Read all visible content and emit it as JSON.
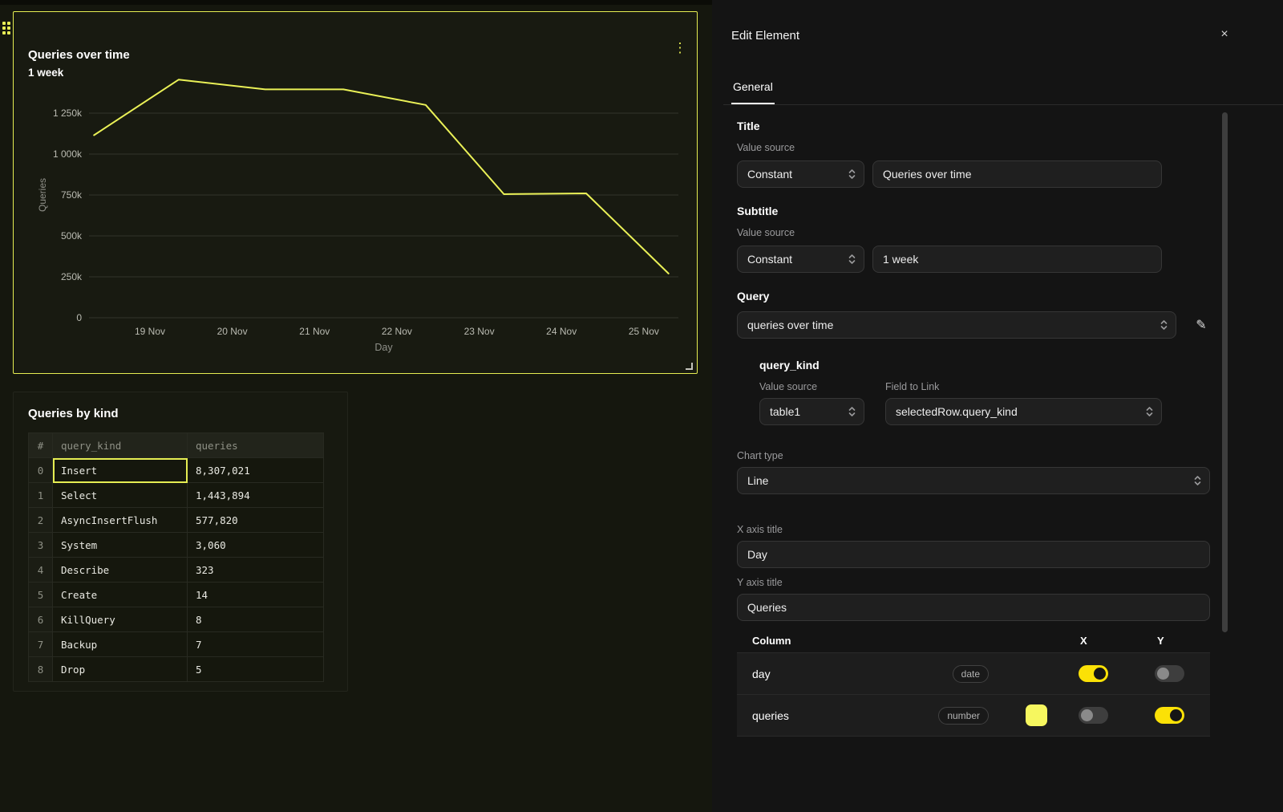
{
  "icons": {
    "kebab": "⋮",
    "close": "×",
    "pencil": "✎"
  },
  "colors": {
    "accent": "#e5ed52",
    "toggle_on": "#fbe106",
    "canvas_bg": "#15170e",
    "panel_bg": "#141414"
  },
  "canvas": {
    "chart_data": {
      "type": "line",
      "title": "Queries over time",
      "subtitle": "1 week",
      "xlabel": "Day",
      "ylabel": "Queries",
      "line_color": "#eaf157",
      "x_range": [
        18.26,
        25.42
      ],
      "y_range": [
        0,
        1500000
      ],
      "x_ticks": [
        {
          "value": 19,
          "label": "19 Nov"
        },
        {
          "value": 20,
          "label": "20 Nov"
        },
        {
          "value": 21,
          "label": "21 Nov"
        },
        {
          "value": 22,
          "label": "22 Nov"
        },
        {
          "value": 23,
          "label": "23 Nov"
        },
        {
          "value": 24,
          "label": "24 Nov"
        },
        {
          "value": 25,
          "label": "25 Nov"
        }
      ],
      "y_ticks": [
        {
          "value": 0,
          "label": "0"
        },
        {
          "value": 250000,
          "label": "250k"
        },
        {
          "value": 500000,
          "label": "500k"
        },
        {
          "value": 750000,
          "label": "750k"
        },
        {
          "value": 1000000,
          "label": "1 000k"
        },
        {
          "value": 1250000,
          "label": "1 250k"
        }
      ],
      "points": [
        [
          18.32,
          1115000
        ],
        [
          19.35,
          1455000
        ],
        [
          20.4,
          1395000
        ],
        [
          21.35,
          1395000
        ],
        [
          22.35,
          1300000
        ],
        [
          23.3,
          755000
        ],
        [
          24.3,
          760000
        ],
        [
          25.3,
          270000
        ]
      ]
    },
    "table_card": {
      "title": "Queries by kind",
      "columns": [
        "#",
        "query_kind",
        "queries"
      ],
      "rows": [
        {
          "index": 0,
          "query_kind": "Insert",
          "queries": "8,307,021",
          "selected": true
        },
        {
          "index": 1,
          "query_kind": "Select",
          "queries": "1,443,894",
          "selected": false
        },
        {
          "index": 2,
          "query_kind": "AsyncInsertFlush",
          "queries": "577,820",
          "selected": false
        },
        {
          "index": 3,
          "query_kind": "System",
          "queries": "3,060",
          "selected": false
        },
        {
          "index": 4,
          "query_kind": "Describe",
          "queries": "323",
          "selected": false
        },
        {
          "index": 5,
          "query_kind": "Create",
          "queries": "14",
          "selected": false
        },
        {
          "index": 6,
          "query_kind": "KillQuery",
          "queries": "8",
          "selected": false
        },
        {
          "index": 7,
          "query_kind": "Backup",
          "queries": "7",
          "selected": false
        },
        {
          "index": 8,
          "query_kind": "Drop",
          "queries": "5",
          "selected": false
        }
      ]
    }
  },
  "panel": {
    "title": "Edit Element",
    "tabs": [
      {
        "label": "General",
        "active": true
      }
    ],
    "sections": {
      "title": {
        "heading": "Title",
        "value_source_label": "Value source",
        "source": "Constant",
        "value": "Queries over time"
      },
      "subtitle": {
        "heading": "Subtitle",
        "value_source_label": "Value source",
        "source": "Constant",
        "value": "1 week"
      },
      "query": {
        "heading": "Query",
        "value": "queries over time"
      },
      "query_kind": {
        "heading": "query_kind",
        "value_source_label": "Value source",
        "field_label": "Field to Link",
        "source": "table1",
        "field": "selectedRow.query_kind"
      },
      "chart_type": {
        "label": "Chart type",
        "value": "Line"
      },
      "x_axis": {
        "label": "X axis title",
        "value": "Day"
      },
      "y_axis": {
        "label": "Y axis title",
        "value": "Queries"
      }
    },
    "columns_table": {
      "headers": {
        "column": "Column",
        "x": "X",
        "y": "Y"
      },
      "rows": [
        {
          "name": "day",
          "type": "date",
          "swatch": null,
          "x": true,
          "y": false
        },
        {
          "name": "queries",
          "type": "number",
          "swatch": "#f6f75f",
          "x": false,
          "y": true
        }
      ]
    }
  }
}
